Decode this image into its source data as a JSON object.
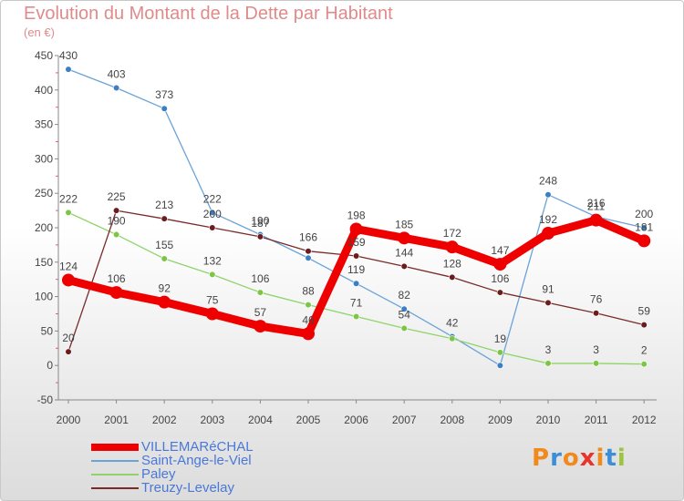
{
  "title": "Evolution du Montant de la Dette par Habitant",
  "subtitle": "(en €)",
  "logo": {
    "text": "Proxiti",
    "colors": [
      "#f08a1c",
      "#3c8fd6",
      "#f08a1c",
      "#e8342a",
      "#f08a1c",
      "#3c8fd6",
      "#9cc43c"
    ]
  },
  "chart_data": {
    "type": "line",
    "x": [
      "2000",
      "2001",
      "2002",
      "2003",
      "2004",
      "2005",
      "2006",
      "2007",
      "2008",
      "2009",
      "2010",
      "2011",
      "2012"
    ],
    "ylim": [
      -50,
      450
    ],
    "yticks": [
      "-50",
      "0",
      "50",
      "100",
      "150",
      "200",
      "250",
      "300",
      "350",
      "400",
      "450"
    ],
    "grid": false,
    "legend": "bottom-left",
    "series": [
      {
        "name": "Saint-Ange-le-Viel",
        "color": "#6aa3d8",
        "marker": "#3b7fc6",
        "values": [
          430,
          403,
          373,
          222,
          190,
          156,
          119,
          82,
          42,
          0,
          248,
          216,
          200
        ],
        "labels": [
          "430",
          "403",
          "373",
          "222",
          "190",
          "",
          "119",
          "82",
          "42",
          "",
          "248",
          "216",
          "200"
        ]
      },
      {
        "name": "Paley",
        "color": "#8fd46a",
        "marker": "#7cc545",
        "values": [
          222,
          190,
          155,
          132,
          106,
          88,
          71,
          54,
          39,
          19,
          3,
          3,
          2
        ],
        "labels": [
          "222",
          "190",
          "155",
          "132",
          "106",
          "88",
          "71",
          "54",
          "",
          "19",
          "3",
          "3",
          "2"
        ]
      },
      {
        "name": "Treuzy-Levelay",
        "color": "#7a2a2a",
        "marker": "#6b1c1c",
        "values": [
          20,
          225,
          213,
          200,
          187,
          166,
          159,
          144,
          128,
          106,
          91,
          76,
          59
        ],
        "labels": [
          "20",
          "225",
          "213",
          "200",
          "187",
          "166",
          "159",
          "144",
          "128",
          "106",
          "91",
          "76",
          "59"
        ]
      },
      {
        "name": "VILLEMARéCHAL",
        "color": "#ee0000",
        "marker": "#ee0000",
        "values": [
          124,
          106,
          92,
          75,
          57,
          46,
          198,
          185,
          172,
          147,
          192,
          211,
          181
        ],
        "labels": [
          "124",
          "106",
          "92",
          "75",
          "57",
          "46",
          "198",
          "185",
          "172",
          "147",
          "192",
          "211",
          "181"
        ]
      }
    ],
    "legend_order": [
      "VILLEMARéCHAL",
      "Saint-Ange-le-Viel",
      "Paley",
      "Treuzy-Levelay"
    ]
  }
}
